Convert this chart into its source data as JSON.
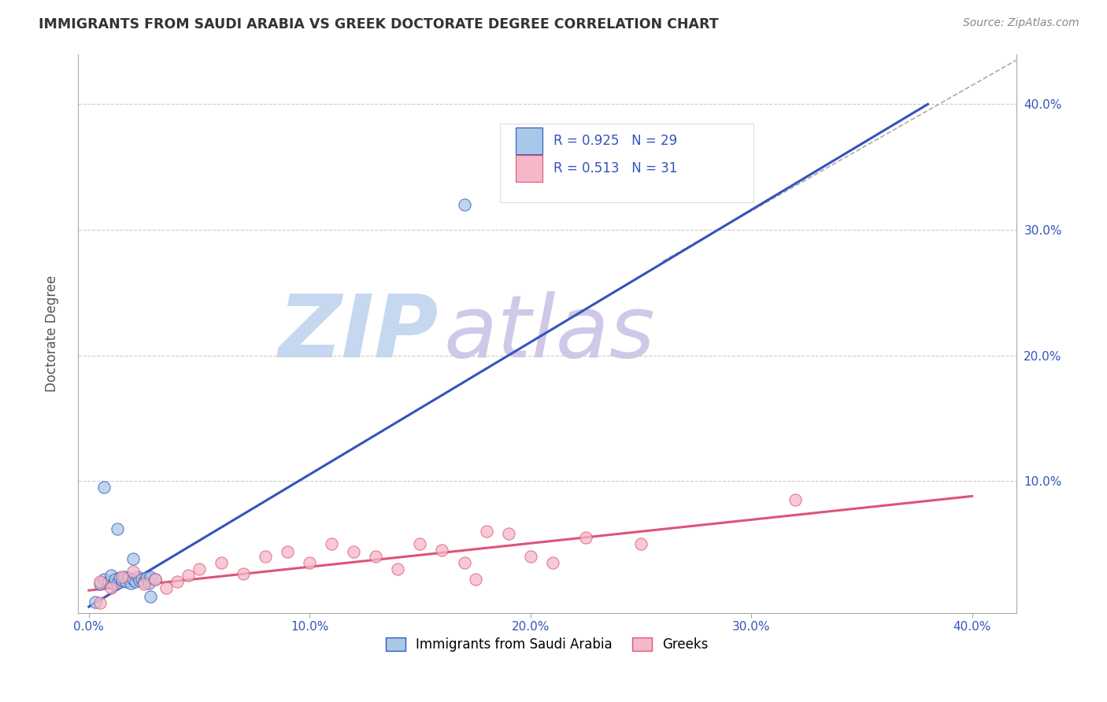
{
  "title": "IMMIGRANTS FROM SAUDI ARABIA VS GREEK DOCTORATE DEGREE CORRELATION CHART",
  "source": "Source: ZipAtlas.com",
  "ylabel": "Doctorate Degree",
  "yticks": [
    0.0,
    0.1,
    0.2,
    0.3,
    0.4
  ],
  "ytick_labels": [
    "",
    "10.0%",
    "20.0%",
    "30.0%",
    "40.0%"
  ],
  "xticks": [
    0.0,
    0.1,
    0.2,
    0.3,
    0.4
  ],
  "xtick_labels": [
    "0.0%",
    "10.0%",
    "20.0%",
    "30.0%",
    "40.0%"
  ],
  "xlim": [
    -0.005,
    0.42
  ],
  "ylim": [
    -0.005,
    0.44
  ],
  "legend_r1": "0.925",
  "legend_n1": "29",
  "legend_r2": "0.513",
  "legend_n2": "31",
  "color_blue": "#a8c8e8",
  "color_pink": "#f4b8c8",
  "line_blue": "#3355bb",
  "line_pink": "#dd5577",
  "watermark_zip_color": "#c5d8f0",
  "watermark_atlas_color": "#d0c8e8",
  "scatter_blue_x": [
    0.005,
    0.007,
    0.009,
    0.01,
    0.011,
    0.012,
    0.013,
    0.014,
    0.015,
    0.016,
    0.017,
    0.018,
    0.019,
    0.02,
    0.021,
    0.022,
    0.023,
    0.024,
    0.025,
    0.026,
    0.027,
    0.028,
    0.03,
    0.007,
    0.013,
    0.02,
    0.028,
    0.17,
    0.003
  ],
  "scatter_blue_y": [
    0.018,
    0.022,
    0.02,
    0.025,
    0.018,
    0.022,
    0.019,
    0.023,
    0.021,
    0.024,
    0.02,
    0.023,
    0.019,
    0.022,
    0.02,
    0.024,
    0.021,
    0.022,
    0.02,
    0.023,
    0.019,
    0.024,
    0.022,
    0.095,
    0.062,
    0.038,
    0.008,
    0.32,
    0.004
  ],
  "scatter_pink_x": [
    0.005,
    0.01,
    0.015,
    0.02,
    0.025,
    0.03,
    0.035,
    0.04,
    0.045,
    0.05,
    0.06,
    0.07,
    0.08,
    0.09,
    0.1,
    0.11,
    0.12,
    0.13,
    0.14,
    0.15,
    0.16,
    0.17,
    0.18,
    0.19,
    0.2,
    0.21,
    0.005,
    0.225,
    0.25,
    0.32,
    0.175
  ],
  "scatter_pink_y": [
    0.02,
    0.015,
    0.024,
    0.028,
    0.018,
    0.022,
    0.015,
    0.02,
    0.025,
    0.03,
    0.035,
    0.026,
    0.04,
    0.044,
    0.035,
    0.05,
    0.044,
    0.04,
    0.03,
    0.05,
    0.045,
    0.035,
    0.06,
    0.058,
    0.04,
    0.035,
    0.003,
    0.055,
    0.05,
    0.085,
    0.022
  ],
  "blue_line_x": [
    0.0,
    0.38
  ],
  "blue_line_y": [
    0.0,
    0.4
  ],
  "pink_line_x": [
    0.0,
    0.4
  ],
  "pink_line_y": [
    0.013,
    0.088
  ],
  "dashed_line_x": [
    0.26,
    0.42
  ],
  "dashed_line_y": [
    0.275,
    0.435
  ]
}
